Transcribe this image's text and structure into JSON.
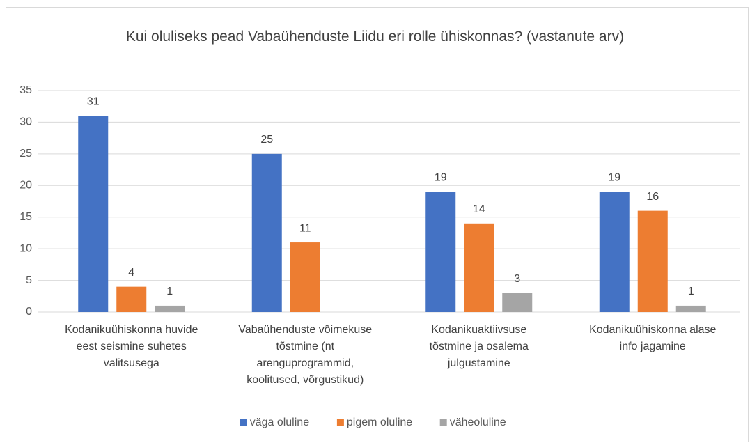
{
  "chart_data": {
    "type": "bar",
    "title": "Kui oluliseks pead Vabaühenduste Liidu eri rolle ühiskonnas? (vastanute arv)",
    "categories": [
      "Kodanikuühiskonna huvide eest seismine suhetes valitsusega",
      "Vabaühenduste võimekuse tõstmine (nt arenguprogrammid, koolitused, võrgustikud)",
      "Kodanikuaktiivsuse tõstmine ja osalema julgustamine",
      "Kodanikuühiskonna alase info jagamine"
    ],
    "series": [
      {
        "name": "väga oluline",
        "color": "#4472c4",
        "values": [
          31,
          25,
          19,
          19
        ]
      },
      {
        "name": "pigem oluline",
        "color": "#ed7d31",
        "values": [
          4,
          11,
          14,
          16
        ]
      },
      {
        "name": "väheoluline",
        "color": "#a5a5a5",
        "values": [
          1,
          null,
          3,
          1
        ]
      }
    ],
    "ylim": [
      0,
      35
    ],
    "yticks": [
      0,
      5,
      10,
      15,
      20,
      25,
      30,
      35
    ],
    "grid": true,
    "legend": "bottom"
  }
}
